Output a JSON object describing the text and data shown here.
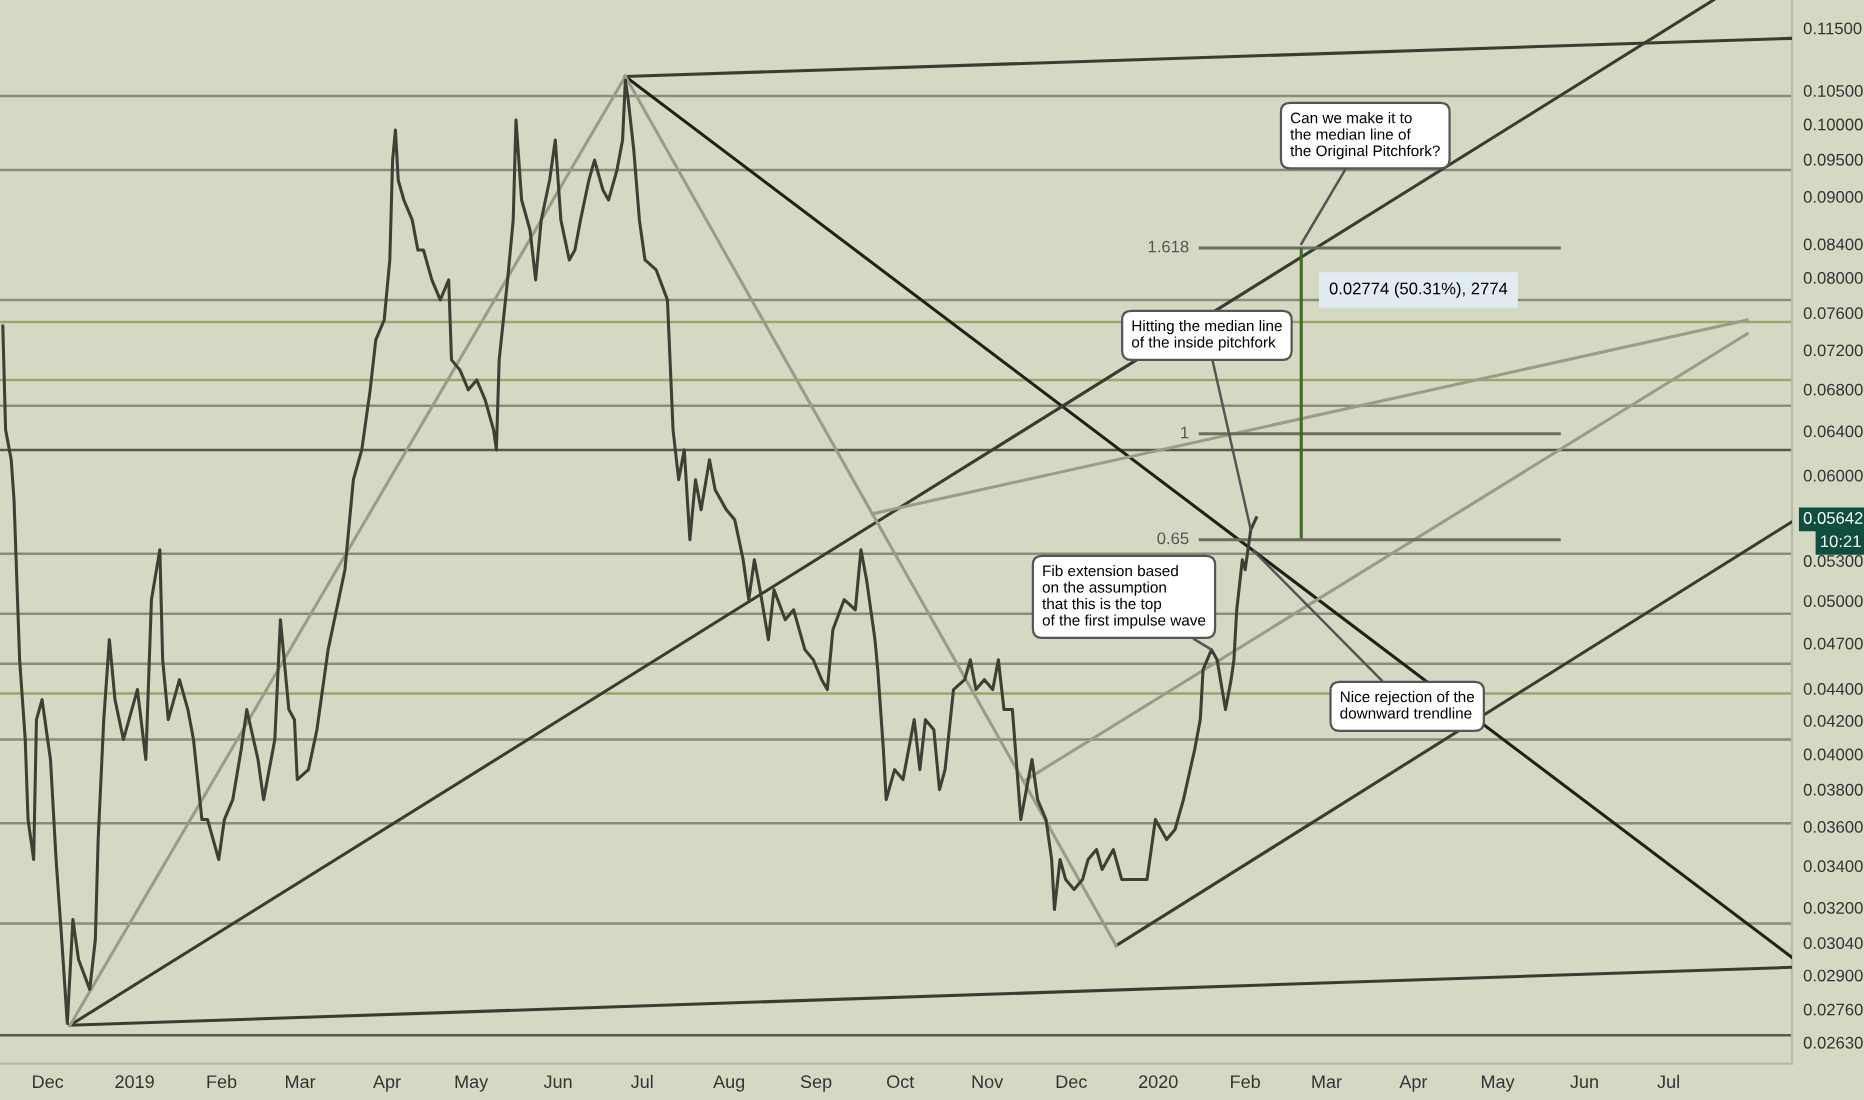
{
  "chart_data": {
    "type": "line",
    "series": [
      {
        "color": "#3d4035",
        "x": [
          "2018-11-15",
          "2018-11-16",
          "2018-11-18",
          "2018-11-19",
          "2018-11-21",
          "2018-11-23",
          "2018-11-24",
          "2018-11-26",
          "2018-11-27",
          "2018-11-29",
          "2018-12-02",
          "2018-12-04",
          "2018-12-06",
          "2018-12-08",
          "2018-12-10",
          "2018-12-12",
          "2018-12-16",
          "2018-12-18",
          "2018-12-19",
          "2018-12-21",
          "2018-12-23",
          "2018-12-25",
          "2018-12-28",
          "2018-12-30",
          "2019-01-02",
          "2019-01-05",
          "2019-01-07",
          "2019-01-10",
          "2019-01-11",
          "2019-01-13",
          "2019-01-17",
          "2019-01-20",
          "2019-01-22",
          "2019-01-25",
          "2019-01-27",
          "2019-01-31",
          "2019-02-02",
          "2019-02-05",
          "2019-02-08",
          "2019-02-10",
          "2019-02-14",
          "2019-02-16",
          "2019-02-20",
          "2019-02-22",
          "2019-02-25",
          "2019-02-27",
          "2019-02-28",
          "2019-03-04",
          "2019-03-07",
          "2019-03-11",
          "2019-03-14",
          "2019-03-17",
          "2019-03-20",
          "2019-03-23",
          "2019-03-26",
          "2019-03-28",
          "2019-03-31",
          "2019-04-02",
          "2019-04-03",
          "2019-04-04",
          "2019-04-05",
          "2019-04-07",
          "2019-04-10",
          "2019-04-12",
          "2019-04-14",
          "2019-04-17",
          "2019-04-20",
          "2019-04-23",
          "2019-04-24",
          "2019-04-27",
          "2019-04-30",
          "2019-05-03",
          "2019-05-06",
          "2019-05-09",
          "2019-05-10",
          "2019-05-11",
          "2019-05-14",
          "2019-05-16",
          "2019-05-17",
          "2019-05-19",
          "2019-05-22",
          "2019-05-24",
          "2019-05-26",
          "2019-05-29",
          "2019-05-31",
          "2019-06-02",
          "2019-06-05",
          "2019-06-07",
          "2019-06-09",
          "2019-06-12",
          "2019-06-14",
          "2019-06-17",
          "2019-06-19",
          "2019-06-22",
          "2019-06-24",
          "2019-06-25",
          "2019-06-26",
          "2019-06-28",
          "2019-06-30",
          "2019-07-02",
          "2019-07-06",
          "2019-07-10",
          "2019-07-12",
          "2019-07-14",
          "2019-07-16",
          "2019-07-18",
          "2019-07-20",
          "2019-07-22",
          "2019-07-25",
          "2019-07-27",
          "2019-07-31",
          "2019-08-03",
          "2019-08-06",
          "2019-08-08",
          "2019-08-10",
          "2019-08-12",
          "2019-08-15",
          "2019-08-17",
          "2019-08-21",
          "2019-08-24",
          "2019-08-28",
          "2019-08-31",
          "2019-09-03",
          "2019-09-05",
          "2019-09-07",
          "2019-09-11",
          "2019-09-15",
          "2019-09-17",
          "2019-09-19",
          "2019-09-22",
          "2019-09-23",
          "2019-09-25",
          "2019-09-26",
          "2019-09-29",
          "2019-10-02",
          "2019-10-06",
          "2019-10-08",
          "2019-10-10",
          "2019-10-13",
          "2019-10-15",
          "2019-10-17",
          "2019-10-20",
          "2019-10-24",
          "2019-10-26",
          "2019-10-28",
          "2019-10-31",
          "2019-11-03",
          "2019-11-05",
          "2019-11-07",
          "2019-11-10",
          "2019-11-13",
          "2019-11-15",
          "2019-11-17",
          "2019-11-19",
          "2019-11-22",
          "2019-11-24",
          "2019-11-25",
          "2019-11-27",
          "2019-11-29",
          "2019-12-02",
          "2019-12-05",
          "2019-12-07",
          "2019-12-10",
          "2019-12-12",
          "2019-12-16",
          "2019-12-19",
          "2019-12-24",
          "2019-12-28",
          "2019-12-31",
          "2020-01-04",
          "2020-01-07",
          "2020-01-10",
          "2020-01-14",
          "2020-01-16",
          "2020-01-17",
          "2020-01-20",
          "2020-01-22",
          "2020-01-25",
          "2020-01-27",
          "2020-01-28",
          "2020-01-29",
          "2020-01-31",
          "2020-02-01",
          "2020-02-03",
          "2020-02-05"
        ],
        "values": [
          0.07457,
          0.06411,
          0.06138,
          0.05791,
          0.04589,
          0.04086,
          0.03637,
          0.03432,
          0.04206,
          0.0433,
          0.03969,
          0.03432,
          0.03055,
          0.02704,
          0.03145,
          0.02967,
          0.02841,
          0.03055,
          0.03533,
          0.04206,
          0.04725,
          0.0433,
          0.04086,
          0.04206,
          0.04394,
          0.03969,
          0.05008,
          0.05385,
          0.04589,
          0.04206,
          0.04458,
          0.04268,
          0.04086,
          0.03637,
          0.03637,
          0.03432,
          0.03637,
          0.03744,
          0.04027,
          0.04268,
          0.03969,
          0.03744,
          0.04086,
          0.04864,
          0.04268,
          0.04206,
          0.03855,
          0.03911,
          0.04145,
          0.04657,
          0.04935,
          0.05231,
          0.05962,
          0.06227,
          0.06795,
          0.07307,
          0.07522,
          0.08209,
          0.09492,
          0.09915,
          0.0922,
          0.08956,
          0.087,
          0.08328,
          0.08328,
          0.07973,
          0.07745,
          0.07973,
          0.07098,
          0.06995,
          0.06795,
          0.06894,
          0.06697,
          0.06411,
          0.06227,
          0.07098,
          0.07973,
          0.087,
          0.1006,
          0.08956,
          0.08574,
          0.07973,
          0.087,
          0.0922,
          0.09772,
          0.087,
          0.08208,
          0.08328,
          0.087,
          0.0922,
          0.09492,
          0.09087,
          0.08956,
          0.09355,
          0.09772,
          0.1066,
          0.1036,
          0.09631,
          0.087,
          0.08208,
          0.0809,
          0.07745,
          0.06411,
          0.05962,
          0.06227,
          0.05464,
          0.05962,
          0.05707,
          0.06138,
          0.05876,
          0.05707,
          0.05625,
          0.05307,
          0.05008,
          0.05307,
          0.05081,
          0.04725,
          0.05081,
          0.04864,
          0.04935,
          0.04657,
          0.04589,
          0.04458,
          0.04394,
          0.04794,
          0.05008,
          0.04935,
          0.05385,
          0.05155,
          0.04725,
          0.04523,
          0.04027,
          0.03744,
          0.03911,
          0.03855,
          0.04206,
          0.03911,
          0.04206,
          0.04145,
          0.03799,
          0.03911,
          0.04394,
          0.04458,
          0.04589,
          0.04394,
          0.04458,
          0.04394,
          0.04589,
          0.04268,
          0.04268,
          0.03637,
          0.03799,
          0.03969,
          0.03744,
          0.03637,
          0.03432,
          0.03191,
          0.03432,
          0.03333,
          0.03285,
          0.03333,
          0.03432,
          0.03482,
          0.03382,
          0.03482,
          0.03333,
          0.03333,
          0.03333,
          0.03637,
          0.03533,
          0.03585,
          0.03744,
          0.04027,
          0.04206,
          0.04523,
          0.04657,
          0.04589,
          0.04268,
          0.04458,
          0.04589,
          0.04935,
          0.05307,
          0.05231,
          0.05544,
          0.05642
        ]
      },
      {
        "color": "#1f211b",
        "x": [
          "2019-06-25",
          "2020-08-14"
        ],
        "values": [
          0.1072,
          0.02976
        ]
      },
      {
        "color": "#3a3c32",
        "x": [
          "2018-12-09",
          "2020-07-17"
        ],
        "values": [
          0.02697,
          0.1198
        ]
      },
      {
        "color": "#3a3c32",
        "x": [
          "2019-12-17",
          "2020-08-14"
        ],
        "values": [
          0.03028,
          0.05609
        ]
      },
      {
        "color": "#3a3c32",
        "x": [
          "2018-12-09",
          "2020-08-14"
        ],
        "values": [
          0.02697,
          0.02934
        ]
      },
      {
        "color": "#3a3c32",
        "x": [
          "2019-06-25",
          "2020-08-14"
        ],
        "values": [
          0.1072,
          0.1133
        ]
      },
      {
        "color": "#9a9c88",
        "x": [
          "2018-12-09",
          "2019-06-25"
        ],
        "values": [
          0.02697,
          0.1072
        ]
      },
      {
        "color": "#9a9c88",
        "x": [
          "2019-06-25",
          "2019-12-17"
        ],
        "values": [
          0.1072,
          0.03028
        ]
      },
      {
        "color": "#9a9c88",
        "x": [
          "2019-09-21",
          "2020-07-29"
        ],
        "values": [
          0.05674,
          0.07522
        ]
      },
      {
        "color": "#9a9c88",
        "x": [
          "2019-11-15",
          "2020-07-29"
        ],
        "values": [
          0.03855,
          0.07372
        ]
      },
      {
        "color": "#6b6d5e",
        "x": [
          "2020-01-16",
          "2020-05-23"
        ],
        "values": [
          0.08352,
          0.08352
        ]
      },
      {
        "color": "#6b6d5e",
        "x": [
          "2020-01-16",
          "2020-05-23"
        ],
        "values": [
          0.06374,
          0.06374
        ]
      },
      {
        "color": "#6b6d5e",
        "x": [
          "2020-01-16",
          "2020-05-23"
        ],
        "values": [
          0.05464,
          0.05464
        ]
      },
      {
        "color": "#3f6b22",
        "x": [
          "2020-02-21",
          "2020-02-21"
        ],
        "values": [
          0.05486,
          0.0833
        ]
      }
    ],
    "ref_lines": [
      {
        "axis": "y",
        "value": 0.1042,
        "color": "#8a8c7c"
      },
      {
        "axis": "y",
        "value": 0.09355,
        "color": "#8a8c7c"
      },
      {
        "axis": "y",
        "value": 0.07745,
        "color": "#8a8c7c"
      },
      {
        "axis": "y",
        "value": 0.07501,
        "color": "#a3a26e"
      },
      {
        "axis": "y",
        "value": 0.06894,
        "color": "#a3a26e"
      },
      {
        "axis": "y",
        "value": 0.06639,
        "color": "#8a8c7c"
      },
      {
        "axis": "y",
        "value": 0.06227,
        "color": "#55574a"
      },
      {
        "axis": "y",
        "value": 0.05354,
        "color": "#8a8c7c"
      },
      {
        "axis": "y",
        "value": 0.04907,
        "color": "#8a8c7c"
      },
      {
        "axis": "y",
        "value": 0.04563,
        "color": "#8a8c7c"
      },
      {
        "axis": "y",
        "value": 0.04369,
        "color": "#a3a26e"
      },
      {
        "axis": "y",
        "value": 0.04086,
        "color": "#8a8c7c"
      },
      {
        "axis": "y",
        "value": 0.03617,
        "color": "#8a8c7c"
      },
      {
        "axis": "y",
        "value": 0.03127,
        "color": "#8a8c7c"
      },
      {
        "axis": "y",
        "value": 0.02658,
        "color": "#55574a"
      }
    ],
    "annotations": [
      {
        "text": "Can we make it to\nthe median line of\nthe Original Pitchfork?",
        "x": "2020-02-21",
        "y": 0.08401
      },
      {
        "text": "Hitting the median line\nof the inside pitchfork",
        "x": "2020-02-03",
        "y": 0.05544
      },
      {
        "text": "Fib extension based\non the assumption\nthat this is the top\nof the first impulse wave",
        "x": "2020-01-20",
        "y": 0.04657
      },
      {
        "text": "Nice rejection of the\ndownward trendline",
        "x": "2020-02-04",
        "y": 0.05377
      },
      {
        "text": "1.618",
        "x": "2020-01-16",
        "y": 0.08352
      },
      {
        "text": "1",
        "x": "2020-01-16",
        "y": 0.06374
      },
      {
        "text": "0.65",
        "x": "2020-01-16",
        "y": 0.05464
      },
      {
        "text": "0.02774 (50.31%), 2774",
        "x": "2020-02-21",
        "y": 0.07858
      },
      "10:21"
    ],
    "log": true,
    "xlim": [
      "2018-11-14",
      "2020-08-14"
    ],
    "ylim": [
      0.0255,
      0.1198
    ],
    "xticks": [
      {
        "value": "2018-12-01",
        "label": "Dec"
      },
      {
        "value": "2019-01-01",
        "label": "2019"
      },
      {
        "value": "2019-02-01",
        "label": "Feb"
      },
      {
        "value": "2019-03-01",
        "label": "Mar"
      },
      {
        "value": "2019-04-01",
        "label": "Apr"
      },
      {
        "value": "2019-05-01",
        "label": "May"
      },
      {
        "value": "2019-06-01",
        "label": "Jun"
      },
      {
        "value": "2019-07-01",
        "label": "Jul"
      },
      {
        "value": "2019-08-01",
        "label": "Aug"
      },
      {
        "value": "2019-09-01",
        "label": "Sep"
      },
      {
        "value": "2019-10-01",
        "label": "Oct"
      },
      {
        "value": "2019-11-01",
        "label": "Nov"
      },
      {
        "value": "2019-12-01",
        "label": "Dec"
      },
      {
        "value": "2020-01-01",
        "label": "2020"
      },
      {
        "value": "2020-02-01",
        "label": "Feb"
      },
      {
        "value": "2020-03-01",
        "label": "Mar"
      },
      {
        "value": "2020-04-01",
        "label": "Apr"
      },
      {
        "value": "2020-05-01",
        "label": "May"
      },
      {
        "value": "2020-06-01",
        "label": "Jun"
      },
      {
        "value": "2020-07-01",
        "label": "Jul"
      }
    ],
    "yticks": [
      {
        "value": 0.115,
        "label": "0.11500"
      },
      {
        "value": 0.105,
        "label": "0.10500"
      },
      {
        "value": 0.1,
        "label": "0.10000"
      },
      {
        "value": 0.095,
        "label": "0.09500"
      },
      {
        "value": 0.09,
        "label": "0.09000"
      },
      {
        "value": 0.084,
        "label": "0.08400"
      },
      {
        "value": 0.08,
        "label": "0.08000"
      },
      {
        "value": 0.076,
        "label": "0.07600"
      },
      {
        "value": 0.072,
        "label": "0.07200"
      },
      {
        "value": 0.068,
        "label": "0.06800"
      },
      {
        "value": 0.064,
        "label": "0.06400"
      },
      {
        "value": 0.06,
        "label": "0.06000"
      },
      0.05642,
      {
        "value": 0.053,
        "label": "0.05300"
      },
      {
        "value": 0.05,
        "label": "0.05000"
      },
      {
        "value": 0.047,
        "label": "0.04700"
      },
      {
        "value": 0.044,
        "label": "0.04400"
      },
      {
        "value": 0.042,
        "label": "0.04200"
      },
      {
        "value": 0.04,
        "label": "0.04000"
      },
      {
        "value": 0.038,
        "label": "0.03800"
      },
      {
        "value": 0.036,
        "label": "0.03600"
      },
      {
        "value": 0.034,
        "label": "0.03400"
      },
      {
        "value": 0.032,
        "label": "0.03200"
      },
      {
        "value": 0.0304,
        "label": "0.03040"
      },
      {
        "value": 0.029,
        "label": "0.02900"
      },
      {
        "value": 0.0276,
        "label": "0.02760"
      },
      {
        "value": 0.0263,
        "label": "0.02630"
      }
    ],
    "grid": false,
    "legend": false
  }
}
